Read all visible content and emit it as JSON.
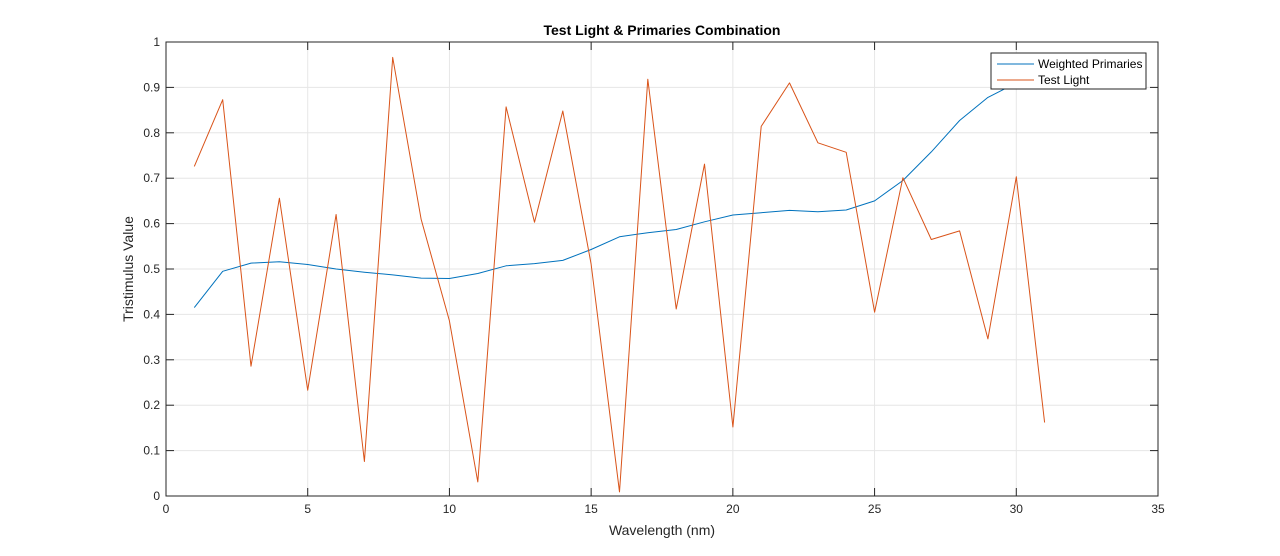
{
  "chart_data": {
    "type": "line",
    "title": "Test Light & Primaries Combination",
    "xlabel": "Wavelength (nm)",
    "ylabel": "Tristimulus Value",
    "xlim": [
      0,
      35
    ],
    "ylim": [
      0,
      1
    ],
    "xticks": [
      "0",
      "5",
      "10",
      "15",
      "20",
      "25",
      "30",
      "35"
    ],
    "yticks": [
      "0",
      "0.1",
      "0.2",
      "0.3",
      "0.4",
      "0.5",
      "0.6",
      "0.7",
      "0.8",
      "0.9",
      "1"
    ],
    "grid": true,
    "legend_position": "top-right",
    "series": [
      {
        "name": "Weighted Primaries",
        "color": "#0072BD",
        "x": [
          1,
          2,
          3,
          4,
          5,
          6,
          7,
          8,
          9,
          10,
          11,
          12,
          13,
          14,
          15,
          16,
          17,
          18,
          19,
          20,
          21,
          22,
          23,
          24,
          25,
          26,
          27,
          28,
          29,
          30
        ],
        "values": [
          0.415,
          0.495,
          0.513,
          0.516,
          0.51,
          0.5,
          0.493,
          0.487,
          0.48,
          0.479,
          0.49,
          0.507,
          0.512,
          0.519,
          0.543,
          0.571,
          0.58,
          0.587,
          0.604,
          0.619,
          0.624,
          0.629,
          0.626,
          0.63,
          0.65,
          0.695,
          0.758,
          0.827,
          0.878,
          0.91
        ]
      },
      {
        "name": "Test Light",
        "color": "#D95319",
        "x": [
          1,
          2,
          3,
          4,
          5,
          6,
          7,
          8,
          9,
          10,
          11,
          12,
          13,
          14,
          15,
          16,
          17,
          18,
          19,
          20,
          21,
          22,
          23,
          24,
          25,
          26,
          27,
          28,
          29,
          30,
          31
        ],
        "values": [
          0.726,
          0.873,
          0.286,
          0.656,
          0.233,
          0.62,
          0.076,
          0.966,
          0.61,
          0.386,
          0.031,
          0.857,
          0.603,
          0.848,
          0.511,
          0.009,
          0.918,
          0.412,
          0.731,
          0.152,
          0.814,
          0.91,
          0.778,
          0.757,
          0.405,
          0.701,
          0.565,
          0.584,
          0.346,
          0.703,
          0.162
        ]
      }
    ]
  }
}
